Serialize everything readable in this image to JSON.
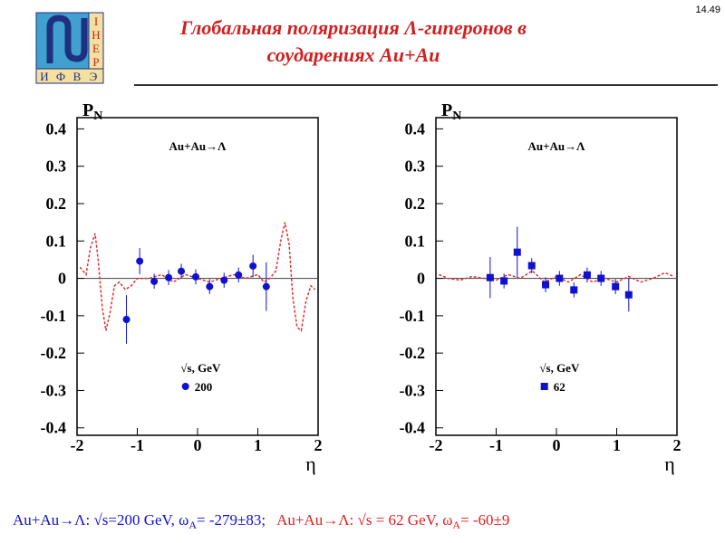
{
  "page_number": "14.49",
  "title": [
    "Глобальная поляризация Λ-гиперонов в",
    "соударениях Au+Au"
  ],
  "logo": {
    "right": [
      "I",
      "Н",
      "Е",
      "Р"
    ],
    "bottom": [
      "И",
      "Ф",
      "В",
      "Э"
    ]
  },
  "chart_data": [
    {
      "type": "scatter",
      "annotation": "Au+Au→Λ",
      "ylabel": "P",
      "ylabel_sub": "N",
      "xlabel": "η",
      "legend_title": "√s, GeV",
      "xlim": [
        -2,
        2
      ],
      "ylim": [
        -0.42,
        0.43
      ],
      "xticks": [
        -2,
        -1,
        0,
        1,
        2
      ],
      "yticks": [
        0.4,
        0.3,
        0.2,
        0.1,
        0,
        -0.1,
        -0.2,
        -0.3,
        -0.4
      ],
      "series": [
        {
          "name": "200",
          "color": "#1010d0",
          "marker": "circle",
          "x": [
            -1.18,
            -0.96,
            -0.72,
            -0.48,
            -0.27,
            -0.03,
            0.2,
            0.44,
            0.68,
            0.92,
            1.14
          ],
          "values": [
            -0.11,
            0.046,
            -0.008,
            0.002,
            0.019,
            0.004,
            -0.022,
            -0.005,
            0.009,
            0.033,
            -0.022
          ],
          "errors": [
            0.065,
            0.035,
            0.02,
            0.02,
            0.02,
            0.02,
            0.02,
            0.02,
            0.02,
            0.03,
            0.065
          ]
        }
      ],
      "curve": {
        "color": "#e03030",
        "x": [
          -1.95,
          -1.85,
          -1.78,
          -1.7,
          -1.65,
          -1.58,
          -1.52,
          -1.45,
          -1.38,
          -1.3,
          -1.2,
          -1.1,
          -1.0,
          -0.8,
          -0.6,
          -0.4,
          -0.2,
          0,
          0.2,
          0.4,
          0.6,
          0.8,
          1.0,
          1.1,
          1.2,
          1.3,
          1.38,
          1.45,
          1.52,
          1.58,
          1.65,
          1.72,
          1.8,
          1.88,
          1.95
        ],
        "values": [
          0.03,
          0.01,
          0.08,
          0.12,
          0.05,
          -0.08,
          -0.14,
          -0.09,
          -0.02,
          -0.01,
          -0.03,
          -0.02,
          0.0,
          0.0,
          0.01,
          -0.01,
          0.01,
          0.0,
          -0.01,
          0.0,
          0.01,
          0.0,
          0.01,
          -0.01,
          0.0,
          0.02,
          0.1,
          0.15,
          0.09,
          -0.05,
          -0.13,
          -0.14,
          -0.06,
          -0.02,
          -0.03
        ]
      }
    },
    {
      "type": "scatter",
      "annotation": "Au+Au→Λ",
      "ylabel": "P",
      "ylabel_sub": "N",
      "xlabel": "η",
      "legend_title": "√s, GeV",
      "xlim": [
        -2,
        2
      ],
      "ylim": [
        -0.42,
        0.43
      ],
      "xticks": [
        -2,
        -1,
        0,
        1,
        2
      ],
      "yticks": [
        0.4,
        0.3,
        0.2,
        0.1,
        0,
        -0.1,
        -0.2,
        -0.3,
        -0.4
      ],
      "series": [
        {
          "name": "62",
          "color": "#1010d0",
          "marker": "square",
          "x": [
            -1.1,
            -0.87,
            -0.65,
            -0.41,
            -0.18,
            0.05,
            0.29,
            0.51,
            0.74,
            0.98,
            1.2
          ],
          "values": [
            0.002,
            -0.007,
            0.07,
            0.034,
            -0.017,
            0.0,
            -0.031,
            0.009,
            0.0,
            -0.022,
            -0.044
          ],
          "errors": [
            0.055,
            0.02,
            0.068,
            0.02,
            0.02,
            0.02,
            0.02,
            0.02,
            0.02,
            0.02,
            0.045
          ]
        }
      ],
      "curve": {
        "color": "#e03030",
        "x": [
          -1.95,
          -1.8,
          -1.6,
          -1.4,
          -1.2,
          -1.0,
          -0.8,
          -0.6,
          -0.4,
          -0.2,
          0,
          0.2,
          0.4,
          0.6,
          0.8,
          1.0,
          1.2,
          1.4,
          1.6,
          1.8,
          1.95
        ],
        "values": [
          0.01,
          0.0,
          -0.005,
          0.005,
          0.0,
          -0.005,
          0.01,
          0.0,
          0.02,
          -0.01,
          0.005,
          -0.01,
          0.01,
          -0.01,
          0.0,
          -0.01,
          0.005,
          -0.01,
          0.0,
          0.015,
          0.005
        ]
      }
    }
  ],
  "caption": [
    {
      "text": "Au+Au→Λ:  √s=200 GeV,  ω",
      "sub": "A",
      "tail": "= -279±83;",
      "color": "#1010d0"
    },
    {
      "text": "Au+Au→Λ: √s = 62 GeV,  ω",
      "sub": "A",
      "tail": "= -60±9",
      "color": "#e02020"
    }
  ]
}
